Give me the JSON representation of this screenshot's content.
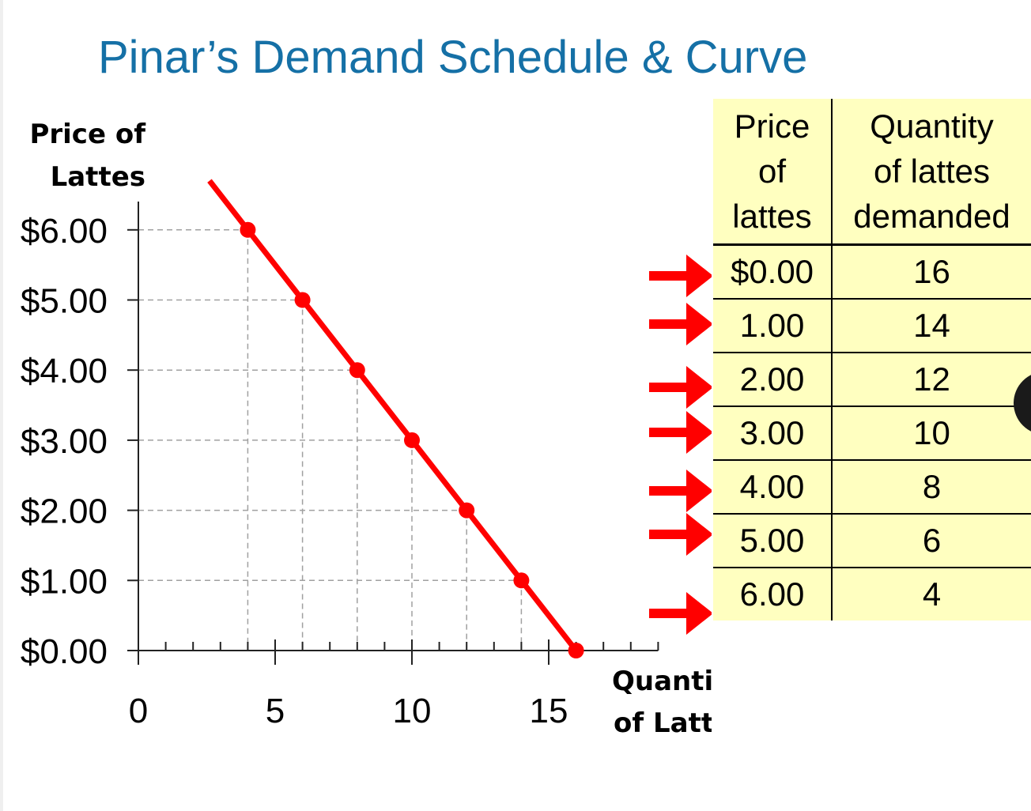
{
  "title": "Pinar’s Demand Schedule & Curve",
  "chart_data": {
    "type": "line",
    "title": "Pinar’s Demand Schedule & Curve",
    "ylabel_lines": [
      "Price of",
      "Lattes"
    ],
    "xlabel_lines": [
      "Quantity",
      "of Lattes"
    ],
    "xlim": [
      0,
      19
    ],
    "ylim": [
      0,
      6
    ],
    "x_ticks": [
      0,
      5,
      10,
      15
    ],
    "y_ticks": [
      0,
      1,
      2,
      3,
      4,
      5,
      6
    ],
    "y_tick_labels": [
      "$0.00",
      "$1.00",
      "$2.00",
      "$3.00",
      "$4.00",
      "$5.00",
      "$6.00"
    ],
    "minor_x_ticks": [
      1,
      2,
      3,
      4,
      6,
      7,
      8,
      9,
      11,
      12,
      13,
      14,
      16,
      17,
      18,
      19
    ],
    "grid": "dashed guides from each point to both axes",
    "series": [
      {
        "color": "#ff0000",
        "x": [
          4,
          6,
          8,
          10,
          12,
          14,
          16
        ],
        "y": [
          6,
          5,
          4,
          3,
          2,
          1,
          0
        ],
        "line_extends_to": [
          2.6,
          6.6
        ]
      }
    ]
  },
  "table": {
    "headers": [
      "Price of lattes",
      "Quantity of lattes demanded"
    ],
    "header_lines": [
      [
        "Price",
        "of",
        "lattes"
      ],
      [
        "Quantity",
        "of lattes",
        "demanded"
      ]
    ],
    "rows": [
      [
        "$0.00",
        "16"
      ],
      [
        "1.00",
        "14"
      ],
      [
        "2.00",
        "12"
      ],
      [
        "3.00",
        "10"
      ],
      [
        "4.00",
        "8"
      ],
      [
        "5.00",
        "6"
      ],
      [
        "6.00",
        "4"
      ]
    ],
    "background": "#ffffc0"
  },
  "arrow_color": "#ff0000",
  "arrow_count": 7
}
